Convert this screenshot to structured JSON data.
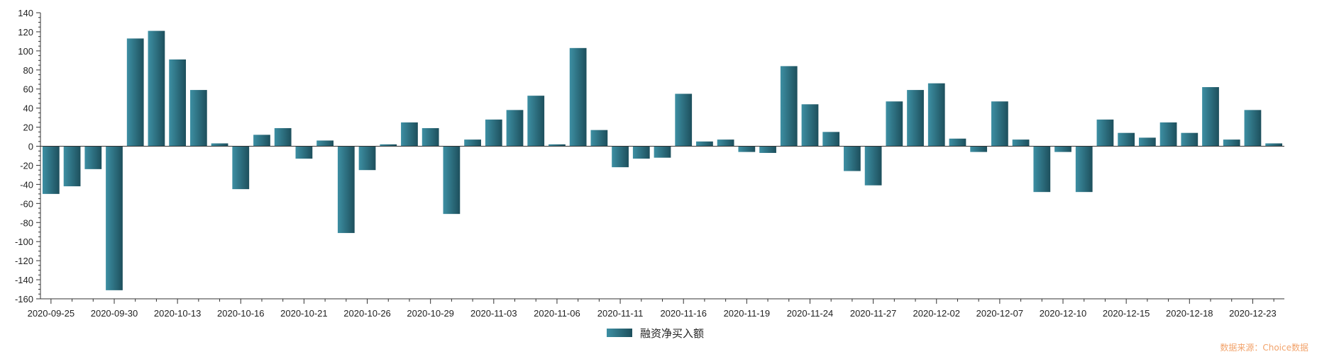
{
  "chart_data": {
    "type": "bar",
    "ylim": [
      -160,
      140
    ],
    "y_ticks": [
      140,
      120,
      100,
      80,
      60,
      40,
      20,
      0,
      -20,
      -40,
      -60,
      -80,
      -100,
      -120,
      -140,
      -160
    ],
    "x_tick_labels": [
      "2020-09-25",
      "2020-09-30",
      "2020-10-13",
      "2020-10-16",
      "2020-10-21",
      "2020-10-26",
      "2020-10-29",
      "2020-11-03",
      "2020-11-06",
      "2020-11-11",
      "2020-11-16",
      "2020-11-19",
      "2020-11-24",
      "2020-11-27",
      "2020-12-02",
      "2020-12-07",
      "2020-12-10",
      "2020-12-15",
      "2020-12-18",
      "2020-12-23"
    ],
    "series": [
      {
        "name": "融资净买入额",
        "color": "#2a6f80",
        "values": [
          -50,
          -42,
          -24,
          -151,
          113,
          121,
          91,
          59,
          3,
          -45,
          12,
          19,
          -13,
          6,
          -91,
          -25,
          2,
          25,
          19,
          -71,
          7,
          28,
          38,
          53,
          2,
          103,
          17,
          -22,
          -13,
          -12,
          55,
          5,
          7,
          -6,
          -7,
          84,
          44,
          15,
          -26,
          -41,
          47,
          59,
          66,
          8,
          -6,
          47,
          7,
          -48,
          -6,
          -48,
          28,
          14,
          9,
          25,
          14,
          62,
          7,
          38,
          3
        ]
      }
    ],
    "legend_position": "bottom-center",
    "grid": false
  },
  "watermark": {
    "text": "数据来源：Choice数据",
    "color": "#f2a36b"
  }
}
